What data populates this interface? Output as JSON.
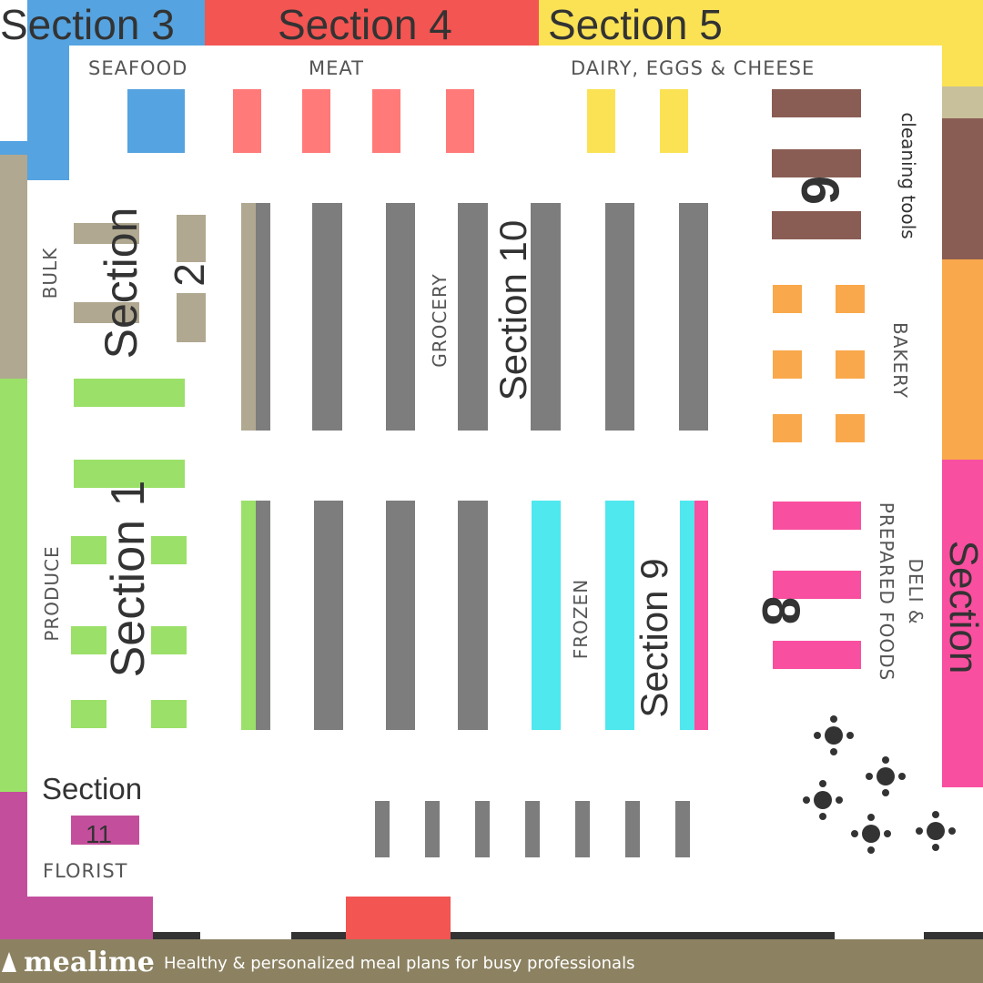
{
  "colors": {
    "seafood": "#55a3e0",
    "meat_band": "#f25552",
    "meat_shelf": "#ff7a78",
    "dairy": "#fbe254",
    "cleaning": "#8a5d54",
    "bulk": "#b0a890",
    "bakery": "#f9a84b",
    "deli": "#f94fa0",
    "produce": "#9be069",
    "frozen": "#4ee8ee",
    "grocery": "#7d7d7d",
    "florist": "#c34f9c",
    "footer": "#8c8262",
    "entrance": "#f25552",
    "dark": "#333333"
  },
  "sections": {
    "s1": "Section 1",
    "s2_word": "Section",
    "s2_num": "2",
    "s3": "Section 3",
    "s4": "Section 4",
    "s5": "Section 5",
    "s6_num": "6",
    "s7_word": "Section",
    "s8_num": "8",
    "s9": "Section 9",
    "s10": "Section 10",
    "s11_word": "Section",
    "s11_num": "11"
  },
  "departments": {
    "seafood": "SEAFOOD",
    "meat": "MEAT",
    "dairy": "DAIRY, EGGS & CHEESE",
    "cleaning": "cleaning tools",
    "bulk": "BULK",
    "grocery": "GROCERY",
    "bakery": "BAKERY",
    "deli_line1": "DELI &",
    "deli_line2": "PREPARED FOODS",
    "produce": "PRODUCE",
    "frozen": "FROZEN",
    "florist": "FLORIST"
  },
  "footer": {
    "brand": "mealime",
    "tagline": "Healthy & personalized meal plans for busy professionals"
  },
  "icons": {
    "brand_logo": "leaf-logo-icon",
    "seating": "cafe-table-icon"
  }
}
